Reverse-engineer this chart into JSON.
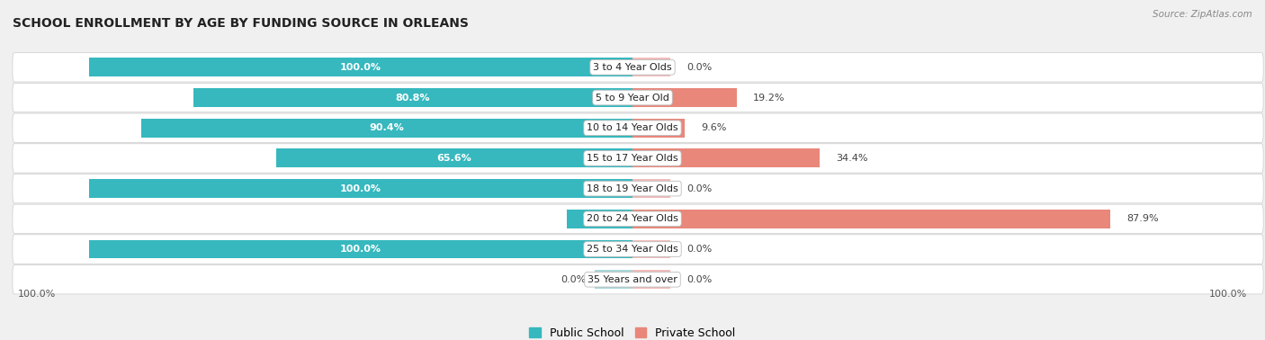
{
  "title": "SCHOOL ENROLLMENT BY AGE BY FUNDING SOURCE IN ORLEANS",
  "source": "Source: ZipAtlas.com",
  "categories": [
    "3 to 4 Year Olds",
    "5 to 9 Year Old",
    "10 to 14 Year Olds",
    "15 to 17 Year Olds",
    "18 to 19 Year Olds",
    "20 to 24 Year Olds",
    "25 to 34 Year Olds",
    "35 Years and over"
  ],
  "public_values": [
    100.0,
    80.8,
    90.4,
    65.6,
    100.0,
    12.1,
    100.0,
    0.0
  ],
  "private_values": [
    0.0,
    19.2,
    9.6,
    34.4,
    0.0,
    87.9,
    0.0,
    0.0
  ],
  "public_color": "#36B8BE",
  "private_color": "#E8877A",
  "public_color_light": "#A8D8DA",
  "private_color_light": "#F2BCBA",
  "bg_color": "#F0F0F0",
  "row_bg_color": "#FFFFFF",
  "title_fontsize": 10,
  "label_fontsize": 8,
  "bar_height": 0.62,
  "xlim": 100,
  "stub_size": 7,
  "legend_label_public": "Public School",
  "legend_label_private": "Private School"
}
